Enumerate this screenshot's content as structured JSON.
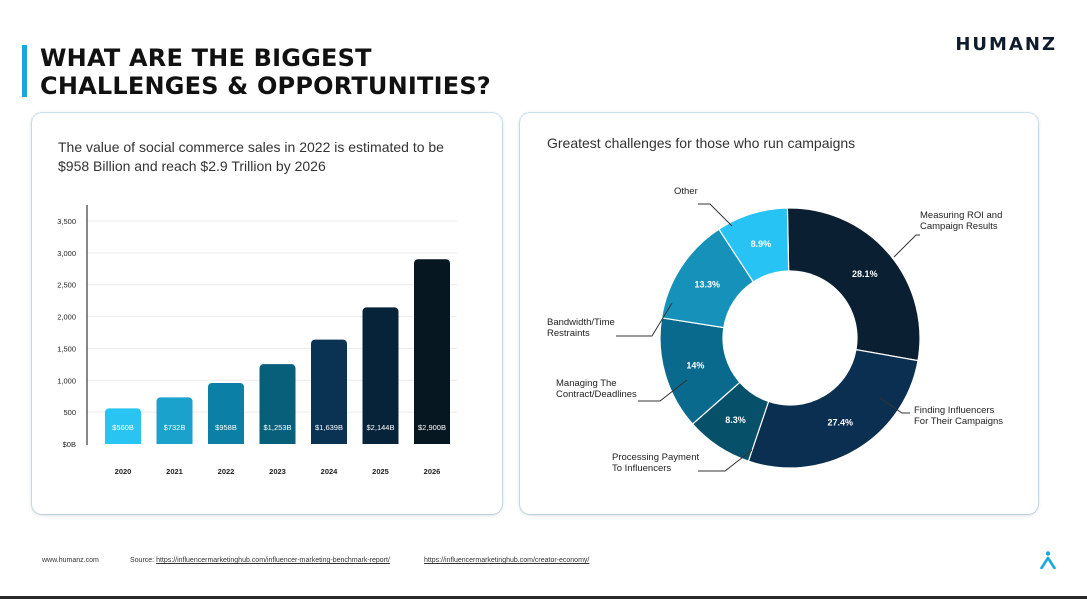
{
  "header": {
    "title_line1": "WHAT ARE THE BIGGEST",
    "title_line2": "CHALLENGES & OPPORTUNITIES?",
    "logo": "HUMANZ"
  },
  "left_card": {
    "heading": "The value of social commerce sales in 2022 is estimated to be $958 Billion and reach $2.9 Trillion by 2026"
  },
  "right_card": {
    "heading": "Greatest challenges for those who run campaigns"
  },
  "footer": {
    "site": "www.humanz.com",
    "source_label": "Source:",
    "link1": "https://influencermarketinghub.com/influencer-marketing-benchmark-report/",
    "link2": "https://influencermarketinghub.com/creator-economy/"
  },
  "colors": {
    "accent": "#1aa7e0",
    "bars": [
      "#2ac4f2",
      "#1aa1cc",
      "#0b7fa6",
      "#075f7a",
      "#0a3253",
      "#07233a",
      "#061722"
    ]
  },
  "chart_data": [
    {
      "type": "bar",
      "categories": [
        "2020",
        "2021",
        "2022",
        "2023",
        "2024",
        "2025",
        "2026"
      ],
      "values": [
        560,
        732,
        958,
        1253,
        1639,
        2144,
        2900
      ],
      "data_labels": [
        "$560B",
        "$732B",
        "$958B",
        "$1,253B",
        "$1,639B",
        "$2,144B",
        "$2,900B"
      ],
      "ytick_labels": [
        "$0B",
        "500",
        "1,000",
        "1,500",
        "2,000",
        "2,500",
        "3,000",
        "3,500"
      ],
      "yticks": [
        0,
        500,
        1000,
        1500,
        2000,
        2500,
        3000,
        3500
      ],
      "ylim": [
        0,
        3500
      ],
      "grid": true
    },
    {
      "type": "pie",
      "labels": [
        "Measuring ROI and Campaign Results",
        "Finding Influencers For Their Campaigns",
        "Processing Payment To Influencers",
        "Managing The Contract/Deadlines",
        "Bandwidth/Time Restraints",
        "Other"
      ],
      "values": [
        28.1,
        27.4,
        8.3,
        14,
        13.3,
        8.9
      ],
      "value_labels": [
        "28.1%",
        "27.4%",
        "8.3%",
        "14%",
        "13.3%",
        "8.9%"
      ],
      "label_lines": [
        [
          "Measuring ROI and",
          "Campaign Results"
        ],
        [
          "Finding Influencers",
          "For Their Campaigns"
        ],
        [
          "Processing Payment",
          "To Influencers"
        ],
        [
          "Managing The",
          "Contract/Deadlines"
        ],
        [
          "Bandwidth/Time",
          "Restraints"
        ],
        [
          "Other"
        ]
      ],
      "colors": [
        "#0b1f33",
        "#0b2f50",
        "#06506a",
        "#0a6a8e",
        "#1591ba",
        "#27c3f5"
      ],
      "donut": true
    }
  ]
}
